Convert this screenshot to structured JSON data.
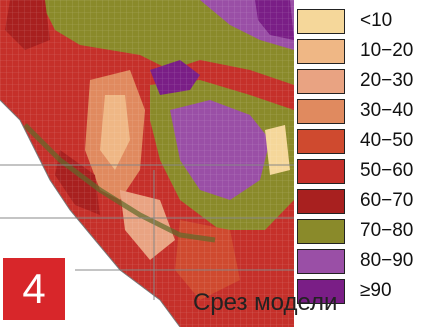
{
  "badge": {
    "number": "4"
  },
  "caption": "Срез модели",
  "legend": {
    "items": [
      {
        "label": "<10",
        "color": "#f5d79a"
      },
      {
        "label": "10−20",
        "color": "#efb785"
      },
      {
        "label": "20−30",
        "color": "#e9a382"
      },
      {
        "label": "30−40",
        "color": "#e08a5f"
      },
      {
        "label": "40−50",
        "color": "#cf4a2f"
      },
      {
        "label": "50−60",
        "color": "#c5302a"
      },
      {
        "label": "60−70",
        "color": "#a8201f"
      },
      {
        "label": "70−80",
        "color": "#8a8a2a"
      },
      {
        "label": "80−90",
        "color": "#9a4fa6"
      },
      {
        "label": "≥90",
        "color": "#7a1e86"
      }
    ]
  }
}
